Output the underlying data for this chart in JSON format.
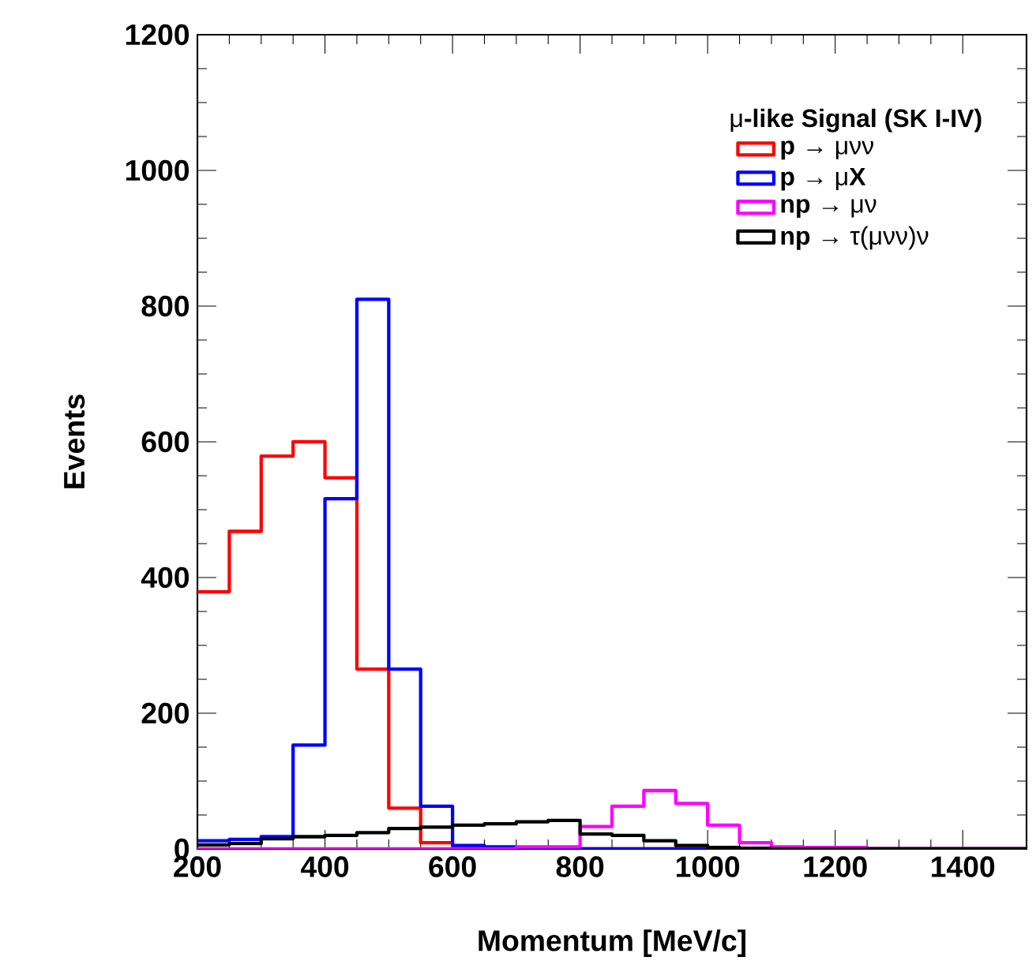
{
  "chart_data": {
    "type": "histogram",
    "xlabel": "Momentum [MeV/c]",
    "ylabel": "Events",
    "legend_title": "μ**-like Signal (SK I-IV)**",
    "bins": [
      200,
      250,
      300,
      350,
      400,
      450,
      500,
      550,
      600,
      650,
      700,
      750,
      800,
      850,
      900,
      950,
      1000,
      1050,
      1100,
      1150,
      1200,
      1250,
      1300,
      1350,
      1400,
      1450,
      1500
    ],
    "series": [
      {
        "name": "**p** → μνν",
        "color": "#ff0000",
        "values": [
          379,
          468,
          579,
          600,
          547,
          265,
          60,
          9,
          3,
          0,
          0,
          0,
          0,
          0,
          0,
          0,
          0,
          0,
          0,
          0,
          0,
          0,
          0,
          0,
          0,
          0
        ]
      },
      {
        "name": "**p** → μ**X**",
        "color": "#0000ff",
        "values": [
          12,
          14,
          18,
          153,
          516,
          810,
          265,
          63,
          5,
          3,
          0,
          0,
          0,
          0,
          0,
          0,
          0,
          0,
          0,
          0,
          0,
          0,
          0,
          0,
          0,
          0
        ]
      },
      {
        "name": "**np** → μν",
        "color": "#ff00ff",
        "values": [
          0,
          0,
          0,
          0,
          0,
          0,
          0,
          0,
          0,
          0,
          3,
          3,
          33,
          63,
          86,
          67,
          35,
          9,
          3,
          2,
          2,
          0,
          0,
          0,
          0,
          0
        ]
      },
      {
        "name": "**np** → τ(μνν)ν",
        "color": "#000000",
        "values": [
          6,
          8,
          15,
          18,
          20,
          24,
          30,
          32,
          35,
          37,
          40,
          42,
          22,
          20,
          12,
          5,
          2,
          1,
          0,
          0,
          0,
          0,
          0,
          0,
          0,
          0
        ]
      }
    ],
    "xlim": [
      200,
      1500
    ],
    "ylim": [
      0,
      1200
    ],
    "xticks": [
      200,
      400,
      600,
      800,
      1000,
      1200,
      1400
    ],
    "yticks": [
      0,
      200,
      400,
      600,
      800,
      1000,
      1200
    ],
    "grid": false,
    "legend": "top right"
  }
}
